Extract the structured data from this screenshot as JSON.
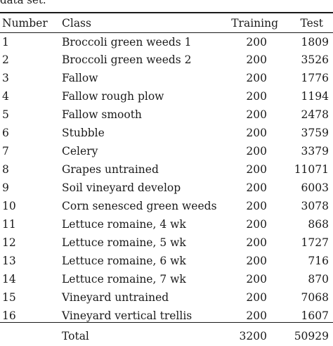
{
  "caption": "data set.",
  "table": {
    "headers": {
      "number": "Number",
      "class": "Class",
      "training": "Training",
      "test": "Test"
    },
    "rows": [
      {
        "number": "1",
        "class": "Broccoli green weeds 1",
        "training": "200",
        "test": "1809"
      },
      {
        "number": "2",
        "class": "Broccoli green weeds 2",
        "training": "200",
        "test": "3526"
      },
      {
        "number": "3",
        "class": "Fallow",
        "training": "200",
        "test": "1776"
      },
      {
        "number": "4",
        "class": "Fallow rough plow",
        "training": "200",
        "test": "1194"
      },
      {
        "number": "5",
        "class": "Fallow smooth",
        "training": "200",
        "test": "2478"
      },
      {
        "number": "6",
        "class": "Stubble",
        "training": "200",
        "test": "3759"
      },
      {
        "number": "7",
        "class": "Celery",
        "training": "200",
        "test": "3379"
      },
      {
        "number": "8",
        "class": "Grapes untrained",
        "training": "200",
        "test": "11071"
      },
      {
        "number": "9",
        "class": "Soil vineyard develop",
        "training": "200",
        "test": "6003"
      },
      {
        "number": "10",
        "class": "Corn senesced green weeds",
        "training": "200",
        "test": "3078"
      },
      {
        "number": "11",
        "class": "Lettuce romaine, 4 wk",
        "training": "200",
        "test": "868"
      },
      {
        "number": "12",
        "class": "Lettuce romaine, 5 wk",
        "training": "200",
        "test": "1727"
      },
      {
        "number": "13",
        "class": "Lettuce romaine, 6 wk",
        "training": "200",
        "test": "716"
      },
      {
        "number": "14",
        "class": "Lettuce romaine, 7 wk",
        "training": "200",
        "test": "870"
      },
      {
        "number": "15",
        "class": "Vineyard untrained",
        "training": "200",
        "test": "7068"
      },
      {
        "number": "16",
        "class": "Vineyard vertical trellis",
        "training": "200",
        "test": "1607"
      }
    ],
    "total": {
      "label": "Total",
      "training": "3200",
      "test": "50929"
    }
  }
}
